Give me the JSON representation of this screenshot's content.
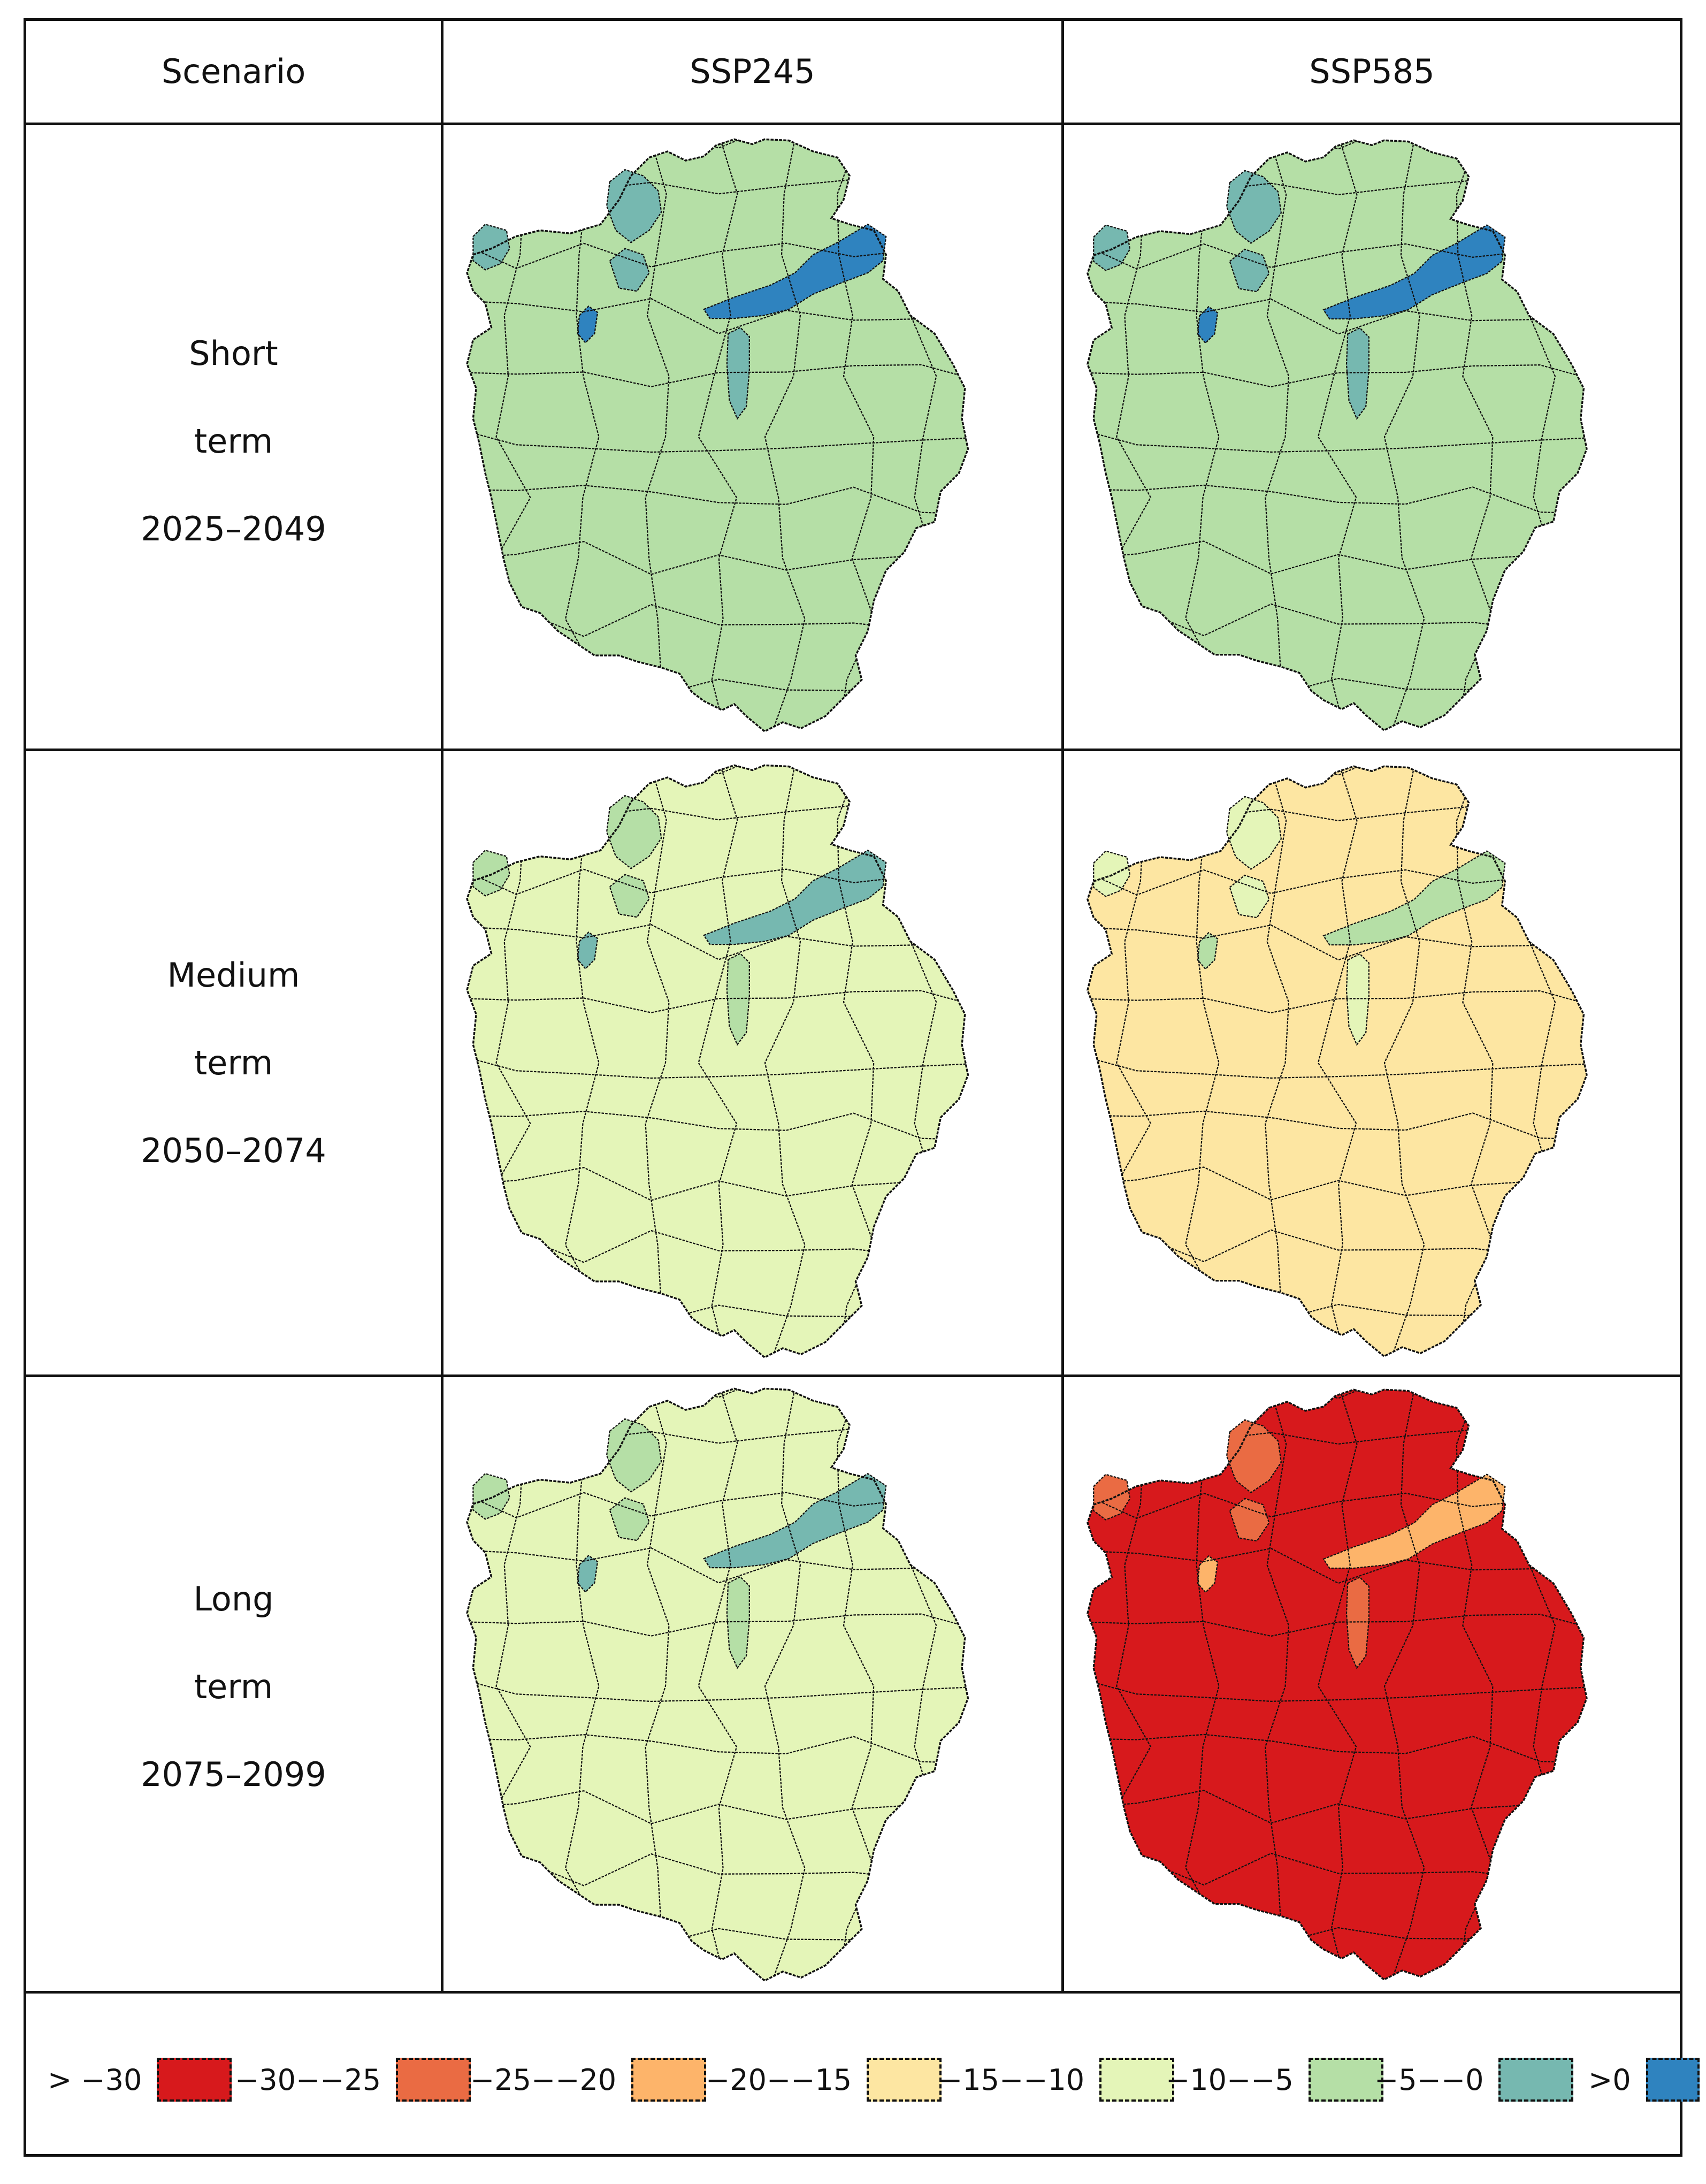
{
  "header": {
    "scenario_label": "Scenario",
    "ssp245_label": "SSP245",
    "ssp585_label": "SSP585"
  },
  "rows": [
    {
      "name": "Short",
      "word": "term",
      "period": "2025–2049"
    },
    {
      "name": "Medium",
      "word": "term",
      "period": "2050–2074"
    },
    {
      "name": "Long",
      "word": "term",
      "period": "2075–2099"
    }
  ],
  "map_classes": [
    {
      "panel": "short-ssp245",
      "base": "#b5dfa6",
      "north": "#76b8b0",
      "hot": "#2f83bf",
      "south": "#76b8b0"
    },
    {
      "panel": "short-ssp585",
      "base": "#b5dfa6",
      "north": "#76b8b0",
      "hot": "#2f83bf",
      "south": "#76b8b0"
    },
    {
      "panel": "medium-ssp245",
      "base": "#e4f5b8",
      "north": "#b5dfa6",
      "hot": "#76b8b0",
      "south": "#b5dfa6"
    },
    {
      "panel": "medium-ssp585",
      "base": "#fde6a2",
      "north": "#e4f5b8",
      "hot": "#b5dfa6",
      "south": "#e4f5b8"
    },
    {
      "panel": "long-ssp245",
      "base": "#e4f5b8",
      "north": "#b5dfa6",
      "hot": "#76b8b0",
      "south": "#b5dfa6"
    },
    {
      "panel": "long-ssp585",
      "base": "#d7191c",
      "north": "#ea6b43",
      "hot": "#fdb46a",
      "south": "#ea6b43"
    }
  ],
  "legend": [
    {
      "label": "> −30",
      "color": "#d7191c"
    },
    {
      "label": "−30−−25",
      "color": "#ea6b43"
    },
    {
      "label": "−25−−20",
      "color": "#fdb46a"
    },
    {
      "label": "−20−−15",
      "color": "#fde6a2"
    },
    {
      "label": "−15−−10",
      "color": "#e4f5b8"
    },
    {
      "label": "−10−−5",
      "color": "#b5dfa6"
    },
    {
      "label": "−5−−0",
      "color": "#76b8b0"
    },
    {
      "label": ">0",
      "color": "#2f83bf"
    }
  ]
}
